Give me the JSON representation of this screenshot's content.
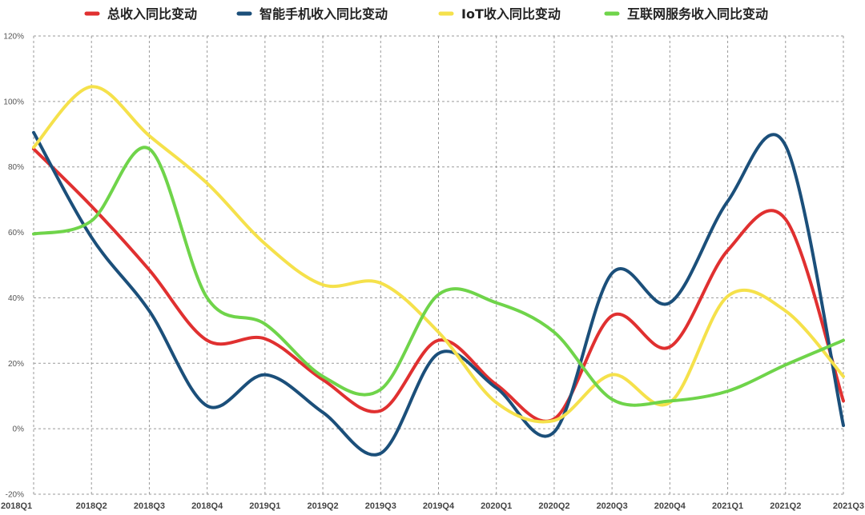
{
  "chart_data": {
    "type": "line",
    "title": "",
    "xlabel": "",
    "ylabel": "",
    "categories": [
      "2018Q1",
      "2018Q2",
      "2018Q3",
      "2018Q4",
      "2019Q1",
      "2019Q2",
      "2019Q3",
      "2019Q4",
      "2020Q1",
      "2020Q2",
      "2020Q3",
      "2020Q4",
      "2021Q1",
      "2021Q2",
      "2021Q3"
    ],
    "ylim": [
      -20,
      120
    ],
    "yticks": [
      -20,
      0,
      20,
      40,
      60,
      80,
      100,
      120
    ],
    "ytick_labels": [
      "-20%",
      "0%",
      "20%",
      "40%",
      "60%",
      "80%",
      "100%",
      "120%"
    ],
    "grid": true,
    "legend_position": "top",
    "series": [
      {
        "name": "总收入同比变动",
        "color": "#e03030",
        "values": [
          85.5,
          68,
          48.5,
          27,
          27.5,
          15,
          5.5,
          27,
          13.5,
          3,
          34.5,
          25,
          54.5,
          64,
          8.5
        ]
      },
      {
        "name": "智能手机收入同比变动",
        "color": "#1b4f7a",
        "values": [
          90.5,
          58.5,
          36,
          7,
          16.5,
          5,
          -7.5,
          23,
          12.5,
          -1,
          47.5,
          38.5,
          69.5,
          86.5,
          1
        ]
      },
      {
        "name": "IoT收入同比变动",
        "color": "#f5e14b",
        "values": [
          86,
          104.5,
          89.5,
          75,
          56.5,
          44,
          44.5,
          29.5,
          8,
          2.5,
          16.5,
          8,
          40.5,
          36,
          16
        ]
      },
      {
        "name": "互联网服务收入同比变动",
        "color": "#6fd44a",
        "values": [
          59.5,
          63.5,
          85.5,
          40,
          32,
          16,
          12,
          41,
          38.5,
          29.5,
          9,
          8.5,
          11.5,
          19.5,
          27
        ]
      }
    ]
  }
}
